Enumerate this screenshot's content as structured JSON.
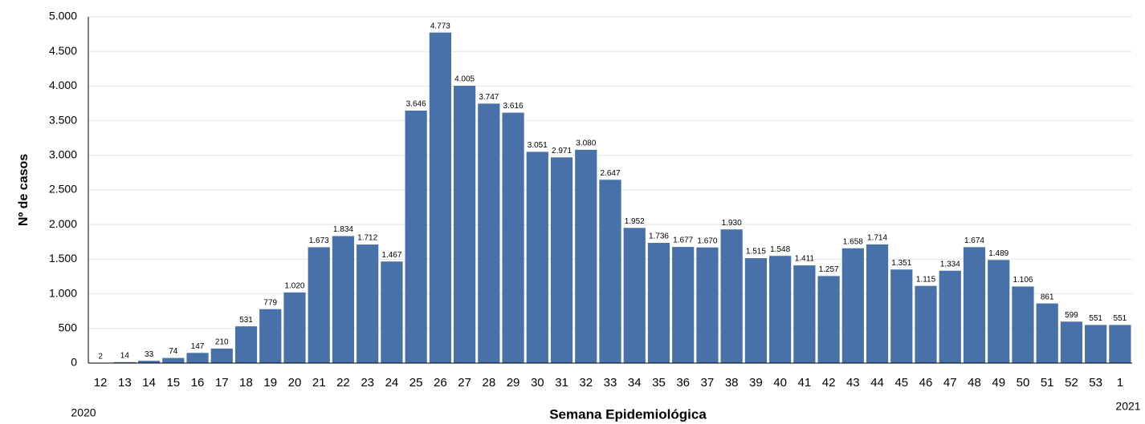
{
  "chart_data": {
    "type": "bar",
    "x_label": "Semana Epidemiológica",
    "y_label": "Nº de casos",
    "annotations": [
      "2020",
      "2021"
    ],
    "categories": [
      "12",
      "13",
      "14",
      "15",
      "16",
      "17",
      "18",
      "19",
      "20",
      "21",
      "22",
      "23",
      "24",
      "25",
      "26",
      "27",
      "28",
      "29",
      "30",
      "31",
      "32",
      "33",
      "34",
      "35",
      "36",
      "37",
      "38",
      "39",
      "40",
      "41",
      "42",
      "43",
      "44",
      "45",
      "46",
      "47",
      "48",
      "49",
      "50",
      "51",
      "52",
      "53",
      "1"
    ],
    "values": [
      2,
      14,
      33,
      74,
      147,
      210,
      531,
      779,
      1020,
      1673,
      1834,
      1712,
      1467,
      3646,
      4773,
      4005,
      3747,
      3616,
      3051,
      2971,
      3080,
      2647,
      1952,
      1736,
      1677,
      1670,
      1930,
      1515,
      1548,
      1411,
      1257,
      1658,
      1714,
      1351,
      1115,
      1334,
      1674,
      1489,
      1106,
      861,
      599,
      551,
      551
    ],
    "value_labels": [
      "2",
      "14",
      "33",
      "74",
      "147",
      "210",
      "531",
      "779",
      "1.020",
      "1.673",
      "1.834",
      "1.712",
      "1.467",
      "3.646",
      "4.773",
      "4.005",
      "3.747",
      "3.616",
      "3.051",
      "2.971",
      "3.080",
      "2.647",
      "1.952",
      "1.736",
      "1.677",
      "1.670",
      "1.930",
      "1.515",
      "1.548",
      "1.411",
      "1.257",
      "1.658",
      "1.714",
      "1.351",
      "1.115",
      "1.334",
      "1.674",
      "1.489",
      "1.106",
      "861",
      "599",
      "551",
      "551"
    ],
    "color": "#4771a8",
    "ylim": [
      0,
      5000
    ],
    "yticks": [
      0,
      500,
      {
        "value": 1000,
        "label": "1.000"
      },
      {
        "value": 1500,
        "label": "1.500"
      },
      {
        "value": 2000,
        "label": "2.000"
      },
      {
        "value": 2500,
        "label": "2.500"
      },
      {
        "value": 3000,
        "label": "3.000"
      },
      {
        "value": 3500,
        "label": "3.500"
      },
      {
        "value": 4000,
        "label": "4.000"
      },
      {
        "value": 4500,
        "label": "4.500"
      },
      {
        "value": 5000,
        "label": "5.000"
      }
    ],
    "grid": true
  }
}
